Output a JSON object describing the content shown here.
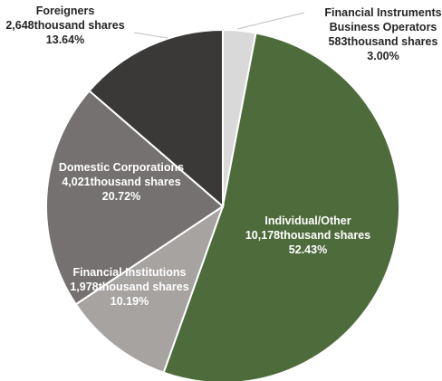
{
  "chart_data": {
    "type": "pie",
    "title": "",
    "start": "top",
    "direction": "clockwise",
    "slices": [
      {
        "name": "Financial Instruments Business Operators",
        "label_lines": [
          "Financial Instruments",
          "Business Operators",
          "583thousand shares",
          "3.00%"
        ],
        "shares": "583thousand shares",
        "value": 3.0,
        "percent": "3.00%",
        "color": "#d9d9d9",
        "label_color": "#262626",
        "label_position": "outside"
      },
      {
        "name": "Individual/Other",
        "label_lines": [
          "Individual/Other",
          "10,178thousand shares",
          "52.43%"
        ],
        "shares": "10,178thousand shares",
        "value": 52.43,
        "percent": "52.43%",
        "color": "#4e6b3c",
        "label_color": "#ffffff",
        "label_position": "inside"
      },
      {
        "name": "Financial Institutions",
        "label_lines": [
          "Financial Institutions",
          "1,978thousand shares",
          "10.19%"
        ],
        "shares": "1,978thousand shares",
        "value": 10.19,
        "percent": "10.19%",
        "color": "#a6a3a1",
        "label_color": "#ffffff",
        "label_position": "inside"
      },
      {
        "name": "Domestic Corporations",
        "label_lines": [
          "Domestic Corporations",
          "4,021thousand shares",
          "20.72%"
        ],
        "shares": "4,021thousand shares",
        "value": 20.72,
        "percent": "20.72%",
        "color": "#757170",
        "label_color": "#ffffff",
        "label_position": "inside"
      },
      {
        "name": "Foreigners",
        "label_lines": [
          "Foreigners",
          "2,648thousand shares",
          "13.64%"
        ],
        "shares": "2,648thousand shares",
        "value": 13.64,
        "percent": "13.64%",
        "color": "#3b3838",
        "label_color": "#262626",
        "label_position": "outside"
      }
    ]
  }
}
